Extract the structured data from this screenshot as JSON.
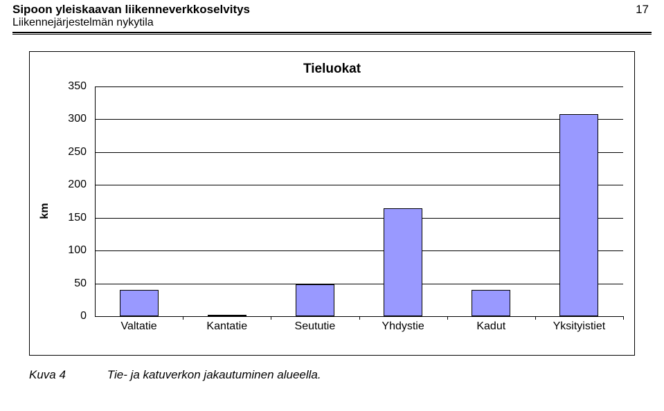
{
  "header": {
    "line1": "Sipoon yleiskaavan liikenneverkkoselvitys",
    "line2": "Liikennejärjestelmän nykytila",
    "page_number": "17"
  },
  "chart": {
    "type": "bar",
    "title": "Tieluokat",
    "ylabel": "km",
    "ylim": [
      0,
      350
    ],
    "ytick_step": 50,
    "yticks": [
      0,
      50,
      100,
      150,
      200,
      250,
      300,
      350
    ],
    "categories": [
      "Valtatie",
      "Kantatie",
      "Seututie",
      "Yhdystie",
      "Kadut",
      "Yksityistiet"
    ],
    "values": [
      40,
      2,
      48,
      165,
      40,
      308
    ],
    "bar_color": "#9999ff",
    "bar_border_color": "#000000",
    "grid_color": "#000000",
    "background_color": "#ffffff",
    "bar_width_ratio": 0.44,
    "title_fontsize": 19,
    "label_fontsize": 16
  },
  "caption": {
    "label": "Kuva 4",
    "text": "Tie- ja katuverkon jakautuminen alueella."
  }
}
